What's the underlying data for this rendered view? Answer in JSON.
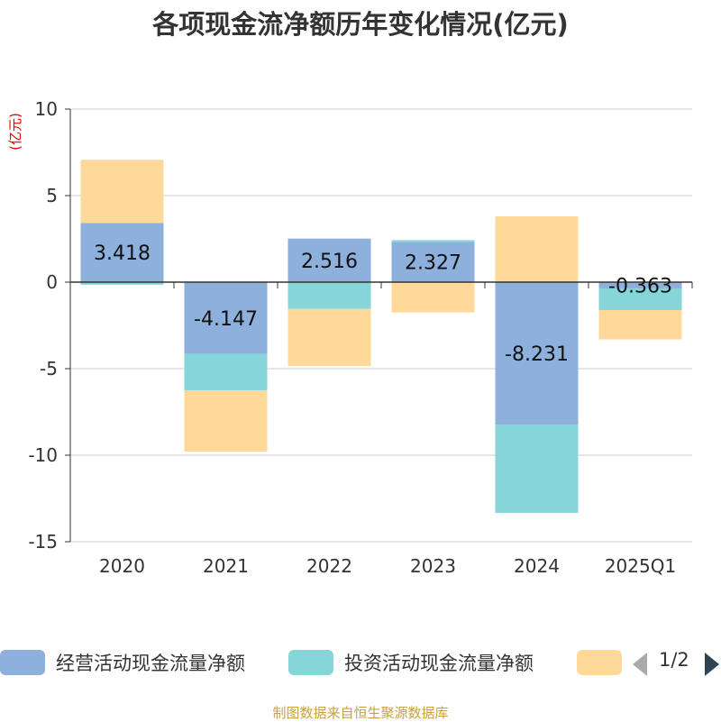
{
  "chart_data": {
    "type": "bar",
    "stacked": true,
    "title": "各项现金流净额历年变化情况(亿元)",
    "unit_label": "(亿元)",
    "categories": [
      "2020",
      "2021",
      "2022",
      "2023",
      "2024",
      "2025Q1"
    ],
    "ylim": [
      -15,
      10
    ],
    "yticks": [
      10,
      5,
      0,
      -5,
      -10,
      -15
    ],
    "grid": true,
    "series": [
      {
        "name": "经营活动现金流量净额",
        "color": "#8eb0dc",
        "values": [
          3.418,
          -4.147,
          2.516,
          2.327,
          -8.231,
          -0.363
        ]
      },
      {
        "name": "投资活动现金流量净额",
        "color": "#86d5d8",
        "values": [
          -0.15,
          -2.1,
          -1.55,
          0.1,
          -5.1,
          -1.25
        ]
      },
      {
        "name": "",
        "color": "#fed99a",
        "values": [
          3.65,
          -3.55,
          -3.3,
          -1.75,
          3.8,
          -1.7
        ]
      }
    ],
    "data_labels": [
      "3.418",
      "-4.147",
      "2.516",
      "2.327",
      "-8.231",
      "-0.363"
    ],
    "legend_position": "bottom",
    "legend_page": "1/2"
  },
  "source_note": "制图数据来自恒生聚源数据库"
}
